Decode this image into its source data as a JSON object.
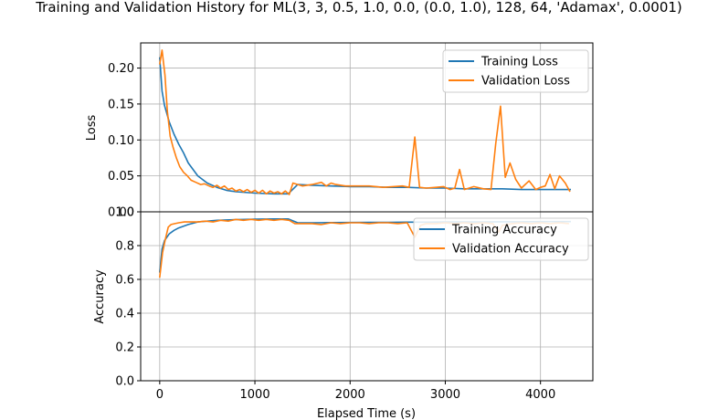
{
  "figure": {
    "title": "Training and Validation History for ML(3, 3, 0.5, 1.0, 0.0, (0.0, 1.0), 128, 64, 'Adamax', 0.0001)",
    "xlabel": "Elapsed Time (s)"
  },
  "colors": {
    "training": "#1f77b4",
    "validation": "#ff7f0e",
    "grid": "#b0b0b0"
  },
  "chart_data": [
    {
      "type": "line",
      "ylabel": "Loss",
      "xlim": [
        -200,
        4550
      ],
      "ylim": [
        0.0,
        0.235
      ],
      "xticks": [
        0,
        1000,
        2000,
        3000,
        4000
      ],
      "yticks": [
        0.0,
        0.05,
        0.1,
        0.15,
        0.2
      ],
      "ytick_labels": [
        "0.00",
        "0.05",
        "0.10",
        "0.15",
        "0.20"
      ],
      "grid": true,
      "legend_position": "top-right",
      "series": [
        {
          "name": "Training Loss",
          "x": [
            0,
            25,
            50,
            100,
            150,
            200,
            250,
            300,
            400,
            500,
            600,
            700,
            800,
            1000,
            1200,
            1350,
            1450,
            1600,
            1800,
            2000,
            2200,
            2400,
            2600,
            2800,
            3000,
            3200,
            3400,
            3600,
            3800,
            4000,
            4200,
            4320
          ],
          "values": [
            0.215,
            0.168,
            0.148,
            0.125,
            0.108,
            0.094,
            0.082,
            0.068,
            0.05,
            0.04,
            0.034,
            0.03,
            0.028,
            0.026,
            0.025,
            0.025,
            0.038,
            0.037,
            0.036,
            0.035,
            0.035,
            0.034,
            0.034,
            0.033,
            0.033,
            0.032,
            0.032,
            0.032,
            0.031,
            0.031,
            0.031,
            0.031
          ]
        },
        {
          "name": "Validation Loss",
          "x": [
            0,
            25,
            55,
            80,
            110,
            140,
            175,
            210,
            250,
            290,
            330,
            380,
            430,
            470,
            520,
            560,
            600,
            640,
            680,
            720,
            760,
            800,
            840,
            880,
            920,
            960,
            1000,
            1040,
            1080,
            1120,
            1160,
            1200,
            1240,
            1280,
            1320,
            1360,
            1400,
            1450,
            1500,
            1600,
            1700,
            1750,
            1800,
            1850,
            1950,
            2050,
            2200,
            2350,
            2450,
            2550,
            2620,
            2680,
            2730,
            2800,
            2900,
            2980,
            3050,
            3100,
            3150,
            3200,
            3300,
            3400,
            3480,
            3530,
            3580,
            3630,
            3680,
            3740,
            3800,
            3880,
            3950,
            4000,
            4050,
            4100,
            4150,
            4200,
            4260,
            4310
          ],
          "values": [
            0.205,
            0.225,
            0.19,
            0.14,
            0.105,
            0.09,
            0.075,
            0.063,
            0.055,
            0.05,
            0.044,
            0.041,
            0.038,
            0.039,
            0.036,
            0.034,
            0.037,
            0.033,
            0.036,
            0.031,
            0.033,
            0.029,
            0.031,
            0.028,
            0.031,
            0.027,
            0.03,
            0.026,
            0.03,
            0.025,
            0.029,
            0.026,
            0.028,
            0.025,
            0.029,
            0.024,
            0.04,
            0.038,
            0.036,
            0.038,
            0.041,
            0.036,
            0.04,
            0.038,
            0.036,
            0.036,
            0.036,
            0.034,
            0.035,
            0.036,
            0.034,
            0.104,
            0.034,
            0.033,
            0.034,
            0.035,
            0.031,
            0.033,
            0.059,
            0.031,
            0.035,
            0.032,
            0.031,
            0.095,
            0.147,
            0.048,
            0.068,
            0.045,
            0.033,
            0.043,
            0.031,
            0.034,
            0.036,
            0.052,
            0.032,
            0.05,
            0.04,
            0.028
          ]
        }
      ]
    },
    {
      "type": "line",
      "ylabel": "Accuracy",
      "xlim": [
        -200,
        4550
      ],
      "ylim": [
        0.0,
        1.0
      ],
      "xticks": [
        0,
        1000,
        2000,
        3000,
        4000
      ],
      "yticks": [
        0.0,
        0.2,
        0.4,
        0.6,
        0.8,
        1.0
      ],
      "ytick_labels": [
        "0.0",
        "0.2",
        "0.4",
        "0.6",
        "0.8",
        "1.0"
      ],
      "grid": true,
      "legend_position": "top-right",
      "series": [
        {
          "name": "Training Accuracy",
          "x": [
            0,
            25,
            50,
            100,
            150,
            200,
            300,
            400,
            500,
            600,
            700,
            800,
            1000,
            1200,
            1350,
            1450,
            1600,
            1800,
            2000,
            2200,
            2400,
            2600,
            2800,
            3000,
            3200,
            3400,
            3600,
            3800,
            4000,
            4200,
            4320
          ],
          "values": [
            0.64,
            0.78,
            0.83,
            0.87,
            0.89,
            0.905,
            0.925,
            0.94,
            0.945,
            0.95,
            0.952,
            0.954,
            0.956,
            0.958,
            0.958,
            0.935,
            0.935,
            0.936,
            0.937,
            0.938,
            0.938,
            0.939,
            0.939,
            0.94,
            0.94,
            0.94,
            0.941,
            0.941,
            0.942,
            0.942,
            0.942
          ]
        },
        {
          "name": "Validation Accuracy",
          "x": [
            0,
            30,
            60,
            90,
            120,
            160,
            200,
            260,
            320,
            400,
            480,
            560,
            640,
            720,
            800,
            880,
            960,
            1040,
            1120,
            1200,
            1280,
            1360,
            1420,
            1500,
            1600,
            1700,
            1800,
            1900,
            2000,
            2100,
            2200,
            2300,
            2400,
            2500,
            2600,
            2680,
            2740,
            2800,
            2900,
            3000,
            3100,
            3200,
            3300,
            3400,
            3500,
            3560,
            3600,
            3700,
            3800,
            3900,
            4000,
            4100,
            4200,
            4300
          ],
          "values": [
            0.61,
            0.76,
            0.84,
            0.91,
            0.925,
            0.93,
            0.935,
            0.94,
            0.94,
            0.94,
            0.945,
            0.94,
            0.95,
            0.945,
            0.955,
            0.95,
            0.955,
            0.95,
            0.955,
            0.95,
            0.955,
            0.95,
            0.93,
            0.93,
            0.93,
            0.925,
            0.935,
            0.93,
            0.935,
            0.935,
            0.93,
            0.935,
            0.935,
            0.93,
            0.935,
            0.85,
            0.92,
            0.93,
            0.93,
            0.935,
            0.93,
            0.935,
            0.93,
            0.935,
            0.93,
            0.88,
            0.92,
            0.93,
            0.935,
            0.93,
            0.935,
            0.93,
            0.935,
            0.93
          ]
        }
      ]
    }
  ]
}
